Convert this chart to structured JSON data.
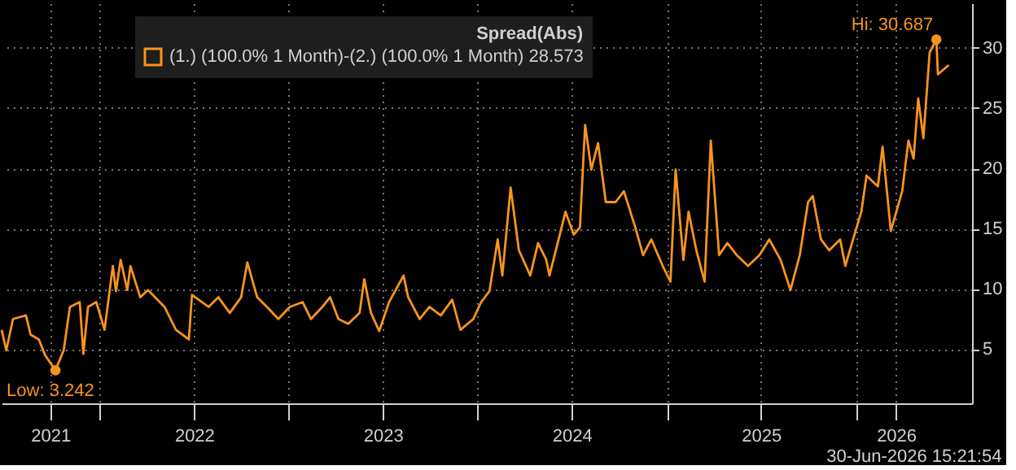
{
  "chart_data": {
    "type": "line",
    "legend_title": "Spread(Abs)",
    "series": [
      {
        "name": "(1.) (100.0% 1 Month)-(2.) (100.0% 1 Month) 28.573",
        "color": "#f7941d",
        "x": [
          "2021-06-25",
          "2021-07-04",
          "2021-07-17",
          "2021-08-11",
          "2021-08-20",
          "2021-09-05",
          "2021-09-17",
          "2021-10-07",
          "2021-10-23",
          "2021-11-04",
          "2021-11-23",
          "2021-11-30",
          "2021-12-09",
          "2021-12-25",
          "2022-01-10",
          "2022-01-26",
          "2022-02-01",
          "2022-02-10",
          "2022-02-23",
          "2022-03-01",
          "2022-03-20",
          "2022-04-04",
          "2022-05-06",
          "2022-05-28",
          "2022-06-22",
          "2022-06-28",
          "2022-07-30",
          "2022-08-18",
          "2022-09-09",
          "2022-10-01",
          "2022-10-13",
          "2022-11-01",
          "2022-11-20",
          "2022-12-12",
          "2023-01-03",
          "2023-01-28",
          "2023-02-13",
          "2023-03-07",
          "2023-03-22",
          "2023-04-07",
          "2023-04-26",
          "2023-05-18",
          "2023-05-27",
          "2023-06-09",
          "2023-06-25",
          "2023-07-14",
          "2023-08-11",
          "2023-08-20",
          "2023-09-11",
          "2023-09-30",
          "2023-10-22",
          "2023-11-13",
          "2023-11-29",
          "2023-12-24",
          "2024-01-08",
          "2024-01-24",
          "2024-02-09",
          "2024-02-18",
          "2024-03-05",
          "2024-03-21",
          "2024-04-12",
          "2024-04-27",
          "2024-05-13",
          "2024-05-19",
          "2024-06-04",
          "2024-06-19",
          "2024-07-05",
          "2024-07-17",
          "2024-07-27",
          "2024-08-08",
          "2024-08-21",
          "2024-09-05",
          "2024-09-24",
          "2024-10-10",
          "2024-11-01",
          "2024-11-16",
          "2024-12-02",
          "2024-12-24",
          "2025-01-08",
          "2025-01-18",
          "2025-02-02",
          "2025-02-12",
          "2025-02-27",
          "2025-03-15",
          "2025-03-27",
          "2025-04-12",
          "2025-04-28",
          "2025-05-16",
          "2025-06-07",
          "2025-06-29",
          "2025-07-18",
          "2025-08-09",
          "2025-08-28",
          "2025-09-15",
          "2025-10-01",
          "2025-10-10",
          "2025-10-26",
          "2025-11-11",
          "2025-12-02",
          "2025-12-12",
          "2025-12-27",
          "2026-01-12",
          "2026-01-22",
          "2026-02-13",
          "2026-02-22",
          "2026-03-10",
          "2026-04-01",
          "2026-04-13",
          "2026-04-23",
          "2026-05-02",
          "2026-05-12",
          "2026-05-24",
          "2026-06-06",
          "2026-06-09",
          "2026-06-30"
        ],
        "values": [
          6.6,
          4.9,
          7.5,
          7.8,
          6.2,
          5.8,
          4.5,
          3.242,
          4.9,
          8.5,
          8.9,
          4.6,
          8.5,
          8.9,
          6.6,
          11.9,
          9.8,
          12.4,
          9.9,
          11.9,
          9.3,
          9.9,
          8.5,
          6.6,
          5.8,
          9.5,
          8.5,
          9.3,
          8.0,
          9.3,
          12.2,
          9.3,
          8.5,
          7.5,
          8.5,
          8.9,
          7.5,
          8.5,
          9.3,
          7.5,
          7.1,
          8.0,
          10.8,
          8.0,
          6.5,
          8.9,
          11.1,
          9.3,
          7.5,
          8.5,
          7.8,
          9.1,
          6.6,
          7.5,
          8.9,
          9.8,
          14.1,
          11.1,
          18.4,
          13.2,
          11.1,
          13.8,
          12.4,
          11.1,
          13.8,
          16.4,
          14.5,
          15.1,
          23.6,
          19.9,
          22.1,
          17.2,
          17.2,
          18.1,
          15.1,
          12.8,
          14.1,
          11.9,
          10.6,
          19.9,
          12.4,
          16.4,
          13.2,
          10.6,
          22.3,
          12.8,
          13.8,
          12.8,
          11.9,
          12.8,
          14.1,
          12.4,
          9.9,
          12.8,
          17.2,
          17.7,
          14.1,
          13.2,
          14.1,
          11.9,
          14.1,
          16.4,
          19.4,
          18.5,
          21.8,
          14.8,
          18.1,
          22.3,
          20.8,
          25.8,
          22.5,
          29.6,
          30.687,
          27.8,
          28.573
        ]
      }
    ],
    "xlim": [
      "2021-06-25",
      "2026-08-14"
    ],
    "xticks": [
      {
        "value": "2021-09-27",
        "label": "2021"
      },
      {
        "value": "2022-01-01",
        "label": null
      },
      {
        "value": "2022-07-02",
        "label": "2022"
      },
      {
        "value": "2023-01-01",
        "label": null
      },
      {
        "value": "2023-07-02",
        "label": "2023"
      },
      {
        "value": "2024-01-01",
        "label": null
      },
      {
        "value": "2024-07-01",
        "label": "2024"
      },
      {
        "value": "2025-01-01",
        "label": null
      },
      {
        "value": "2025-07-02",
        "label": "2025"
      },
      {
        "value": "2026-01-01",
        "label": null
      },
      {
        "value": "2026-03-20",
        "label": "2026"
      }
    ],
    "ylim": [
      0.5,
      33.7
    ],
    "yticks": [
      5,
      10,
      15,
      20,
      25,
      30
    ],
    "grid": true,
    "line_style": "solid",
    "legend": "top",
    "annotations": [
      {
        "text": "Hi: 30.687",
        "x": "2026-06-06",
        "y": 30.687
      },
      {
        "text": "Low: 3.242",
        "x": "2021-10-07",
        "y": 3.242
      },
      "30-Jun-2026 15:21:54"
    ]
  }
}
